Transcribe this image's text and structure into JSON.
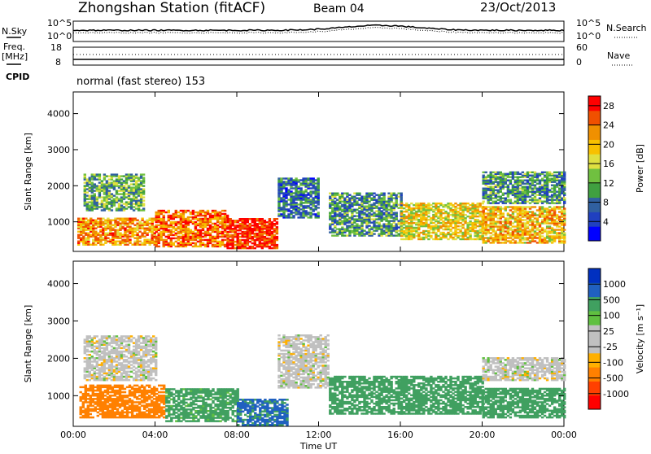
{
  "header": {
    "station": "Zhongshan Station (fitACF)",
    "beam": "Beam 04",
    "date": "23/Oct/2013"
  },
  "top_panels": {
    "nsky_label": "N.Sky",
    "nsky_ticks": [
      "10^5",
      "10^0"
    ],
    "nsearch_label": "N.Search",
    "nsearch_ticks": [
      "10^5",
      "10^0"
    ],
    "freq_label": "Freq.",
    "freq_unit": "[MHz]",
    "freq_ticks": [
      "18",
      "8"
    ],
    "nave_label": "Nave",
    "nave_ticks": [
      "60",
      "0"
    ],
    "cpid_label": "CPID",
    "cpid_text": "normal (fast stereo) 153"
  },
  "colors": {
    "power_scale": [
      "#0000ff",
      "#2040c0",
      "#3060a0",
      "#40a040",
      "#70c040",
      "#e0e040",
      "#f8c000",
      "#f09000",
      "#f05000",
      "#ff0000"
    ],
    "velocity_scale": [
      "#ff0000",
      "#ff4000",
      "#ff8000",
      "#ffb000",
      "#c0c0c0",
      "#c0c0c0",
      "#60c040",
      "#40a060",
      "#2060c0",
      "#0030c0"
    ]
  },
  "chart_data": [
    {
      "type": "heatmap",
      "title": "Power",
      "ylabel": "Slant Range [km]",
      "xlabel": "Time UT",
      "x_ticks": [
        "00:00",
        "04:00",
        "08:00",
        "12:00",
        "16:00",
        "20:00",
        "00:00"
      ],
      "y_ticks": [
        "1000",
        "2000",
        "3000",
        "4000"
      ],
      "ylim": [
        180,
        4600
      ],
      "colorbar_label": "Power [dB]",
      "colorbar_ticks": [
        "4",
        "8",
        "12",
        "16",
        "20",
        "24",
        "28"
      ],
      "colorbar_range": [
        0,
        30
      ],
      "regions": [
        {
          "t0": 0.2,
          "t1": 4.0,
          "r0": 350,
          "r1": 1100,
          "value": 22
        },
        {
          "t0": 4.0,
          "t1": 7.5,
          "r0": 300,
          "r1": 1300,
          "value": 24
        },
        {
          "t0": 7.5,
          "t1": 10.0,
          "r0": 250,
          "r1": 1100,
          "value": 28
        },
        {
          "t0": 10.0,
          "t1": 12.0,
          "r0": 1100,
          "r1": 2200,
          "value": 8
        },
        {
          "t0": 0.5,
          "t1": 3.5,
          "r0": 1300,
          "r1": 2300,
          "value": 12
        },
        {
          "t0": 12.5,
          "t1": 16.0,
          "r0": 600,
          "r1": 1800,
          "value": 10
        },
        {
          "t0": 16.0,
          "t1": 20.0,
          "r0": 500,
          "r1": 1500,
          "value": 18
        },
        {
          "t0": 20.0,
          "t1": 24.0,
          "r0": 400,
          "r1": 1400,
          "value": 20
        },
        {
          "t0": 20.0,
          "t1": 24.0,
          "r0": 1500,
          "r1": 2400,
          "value": 10
        }
      ]
    },
    {
      "type": "heatmap",
      "title": "Velocity",
      "ylabel": "Slant Range [km]",
      "xlabel": "Time UT",
      "x_ticks": [
        "00:00",
        "04:00",
        "08:00",
        "12:00",
        "16:00",
        "20:00",
        "00:00"
      ],
      "y_ticks": [
        "1000",
        "2000",
        "3000",
        "4000"
      ],
      "ylim": [
        180,
        4600
      ],
      "colorbar_label": "Velocity [m s⁻¹]",
      "colorbar_ticks": [
        "1000",
        "500",
        "100",
        "25",
        "-25",
        "-100",
        "-500",
        "-1000"
      ],
      "regions": [
        {
          "t0": 0.3,
          "t1": 4.5,
          "r0": 400,
          "r1": 1300,
          "value": -300
        },
        {
          "t0": 4.5,
          "t1": 8.0,
          "r0": 300,
          "r1": 1200,
          "value": 150
        },
        {
          "t0": 8.0,
          "t1": 10.5,
          "r0": 200,
          "r1": 900,
          "value": 600
        },
        {
          "t0": 0.5,
          "t1": 4.0,
          "r0": 1400,
          "r1": 2600,
          "value": 0
        },
        {
          "t0": 10.0,
          "t1": 12.5,
          "r0": 1200,
          "r1": 2600,
          "value": 0
        },
        {
          "t0": 12.5,
          "t1": 16.0,
          "r0": 500,
          "r1": 1500,
          "value": 200
        },
        {
          "t0": 16.0,
          "t1": 20.0,
          "r0": 500,
          "r1": 1500,
          "value": 300
        },
        {
          "t0": 20.0,
          "t1": 24.0,
          "r0": 400,
          "r1": 1200,
          "value": 250
        },
        {
          "t0": 20.0,
          "t1": 24.0,
          "r0": 1400,
          "r1": 2000,
          "value": 0
        }
      ]
    }
  ]
}
